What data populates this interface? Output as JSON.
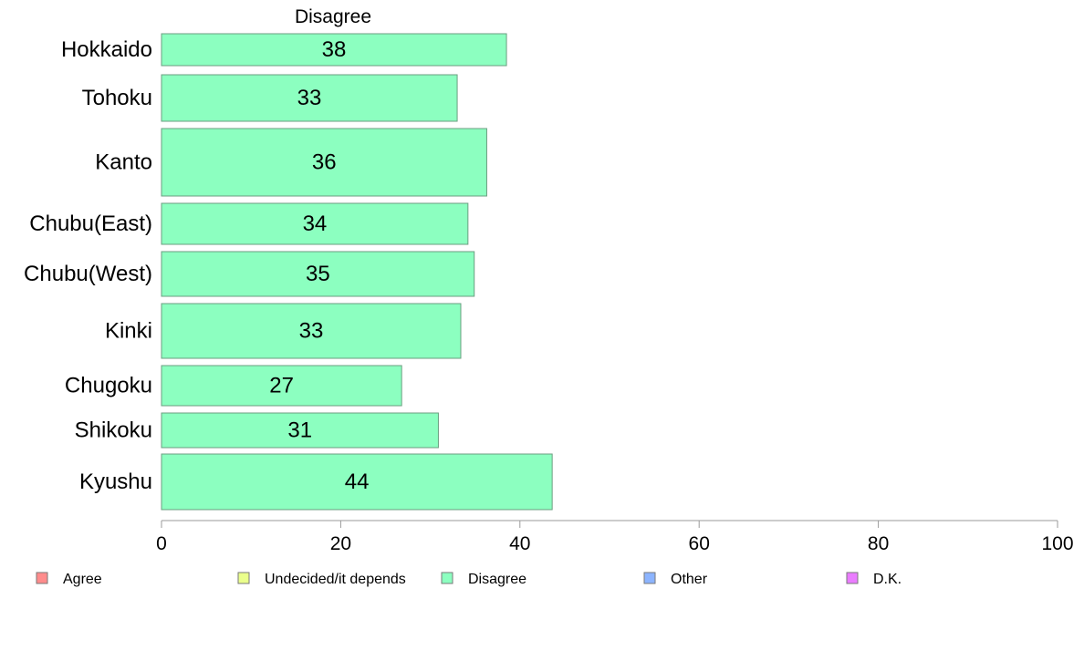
{
  "chart_data": {
    "type": "bar",
    "orientation": "horizontal",
    "title": "Disagree",
    "categories": [
      "Hokkaido",
      "Tohoku",
      "Kanto",
      "Chubu(East)",
      "Chubu(West)",
      "Kinki",
      "Chugoku",
      "Shikoku",
      "Kyushu"
    ],
    "values": [
      38.5,
      33,
      36.3,
      34.2,
      34.9,
      33.4,
      26.8,
      30.9,
      43.6
    ],
    "value_labels": [
      "38",
      "33",
      "36",
      "34",
      "35",
      "33",
      "27",
      "31",
      "44"
    ],
    "xlim": [
      0,
      100
    ],
    "xticks": [
      "0",
      "20",
      "40",
      "60",
      "80",
      "100"
    ],
    "xlabel": "",
    "ylabel": "",
    "grid": false,
    "bar_color": "#8cffc0",
    "bar_stroke": "#6b9e80",
    "axis_color": "#9a9a9a",
    "legend": {
      "position": "bottom",
      "items": [
        {
          "label": "Agree",
          "color": "#ff8c8c"
        },
        {
          "label": "Undecided/it depends",
          "color": "#eaff8c"
        },
        {
          "label": "Disagree",
          "color": "#8cffc0"
        },
        {
          "label": "Other",
          "color": "#8cb4ff"
        },
        {
          "label": "D.K.",
          "color": "#ea7cff"
        }
      ]
    }
  }
}
